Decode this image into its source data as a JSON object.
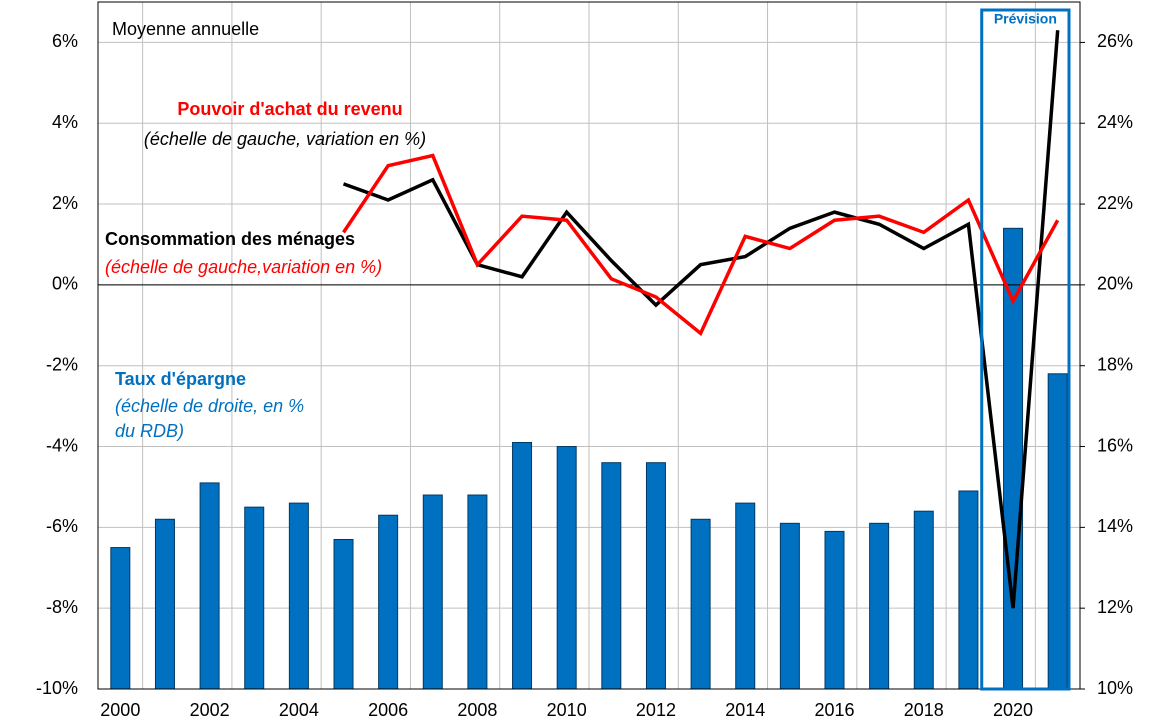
{
  "chart_data": {
    "type": "bar-line",
    "categories": [
      "2000",
      null,
      "2002",
      null,
      "2004",
      null,
      "2006",
      null,
      "2008",
      null,
      "2010",
      null,
      "2012",
      null,
      "2014",
      null,
      "2016",
      null,
      "2018",
      null,
      "2020",
      null
    ],
    "series": [
      {
        "name": "Taux d'épargne",
        "type": "bar",
        "axis": "y2",
        "color": "#0070c0",
        "values": [
          13.5,
          14.2,
          15.1,
          14.5,
          14.6,
          13.7,
          14.3,
          14.8,
          14.8,
          16.1,
          16.0,
          15.6,
          15.6,
          14.2,
          14.6,
          14.1,
          13.9,
          14.1,
          14.4,
          14.9,
          21.4,
          17.8
        ]
      },
      {
        "name": "Consommation des ménages",
        "type": "line",
        "axis": "y",
        "color": "#000000",
        "values": [
          null,
          null,
          null,
          null,
          null,
          2.5,
          2.1,
          2.6,
          0.5,
          0.2,
          1.8,
          0.6,
          -0.5,
          0.5,
          0.7,
          1.4,
          1.8,
          1.5,
          0.9,
          1.5,
          -8.0,
          6.3
        ]
      },
      {
        "name": "Pouvoir d'achat du revenu",
        "type": "line",
        "axis": "y",
        "color": "#ff0000",
        "values": [
          null,
          null,
          null,
          null,
          null,
          1.3,
          2.95,
          3.2,
          0.5,
          1.7,
          1.6,
          0.15,
          -0.3,
          -1.2,
          1.2,
          0.9,
          1.6,
          1.7,
          1.3,
          2.1,
          -0.4,
          1.6
        ]
      }
    ],
    "annotations": [
      "Moyenne annuelle",
      "(échelle de gauche, variation en %)",
      "(échelle de gauche,variation en %)",
      "(échelle de droite, en %",
      "du RDB)",
      "Prévision"
    ],
    "ylim": [
      -10,
      7
    ],
    "yticks": [
      {
        "value": -10,
        "label": "-10%"
      },
      {
        "value": -8,
        "label": "-8%"
      },
      {
        "value": -6,
        "label": "-6%"
      },
      {
        "value": -4,
        "label": "-4%"
      },
      {
        "value": -2,
        "label": "-2%"
      },
      {
        "value": 0,
        "label": "0%"
      },
      {
        "value": 2,
        "label": "2%"
      },
      {
        "value": 4,
        "label": "4%"
      },
      {
        "value": 6,
        "label": "6%"
      }
    ],
    "y2lim": [
      10,
      27
    ],
    "y2ticks": [
      {
        "value": 10,
        "label": "10%"
      },
      {
        "value": 12,
        "label": "12%"
      },
      {
        "value": 14,
        "label": "14%"
      },
      {
        "value": 16,
        "label": "16%"
      },
      {
        "value": 18,
        "label": "18%"
      },
      {
        "value": 20,
        "label": "20%"
      },
      {
        "value": 22,
        "label": "22%"
      },
      {
        "value": 24,
        "label": "24%"
      },
      {
        "value": 26,
        "label": "26%"
      }
    ],
    "grid": true
  }
}
